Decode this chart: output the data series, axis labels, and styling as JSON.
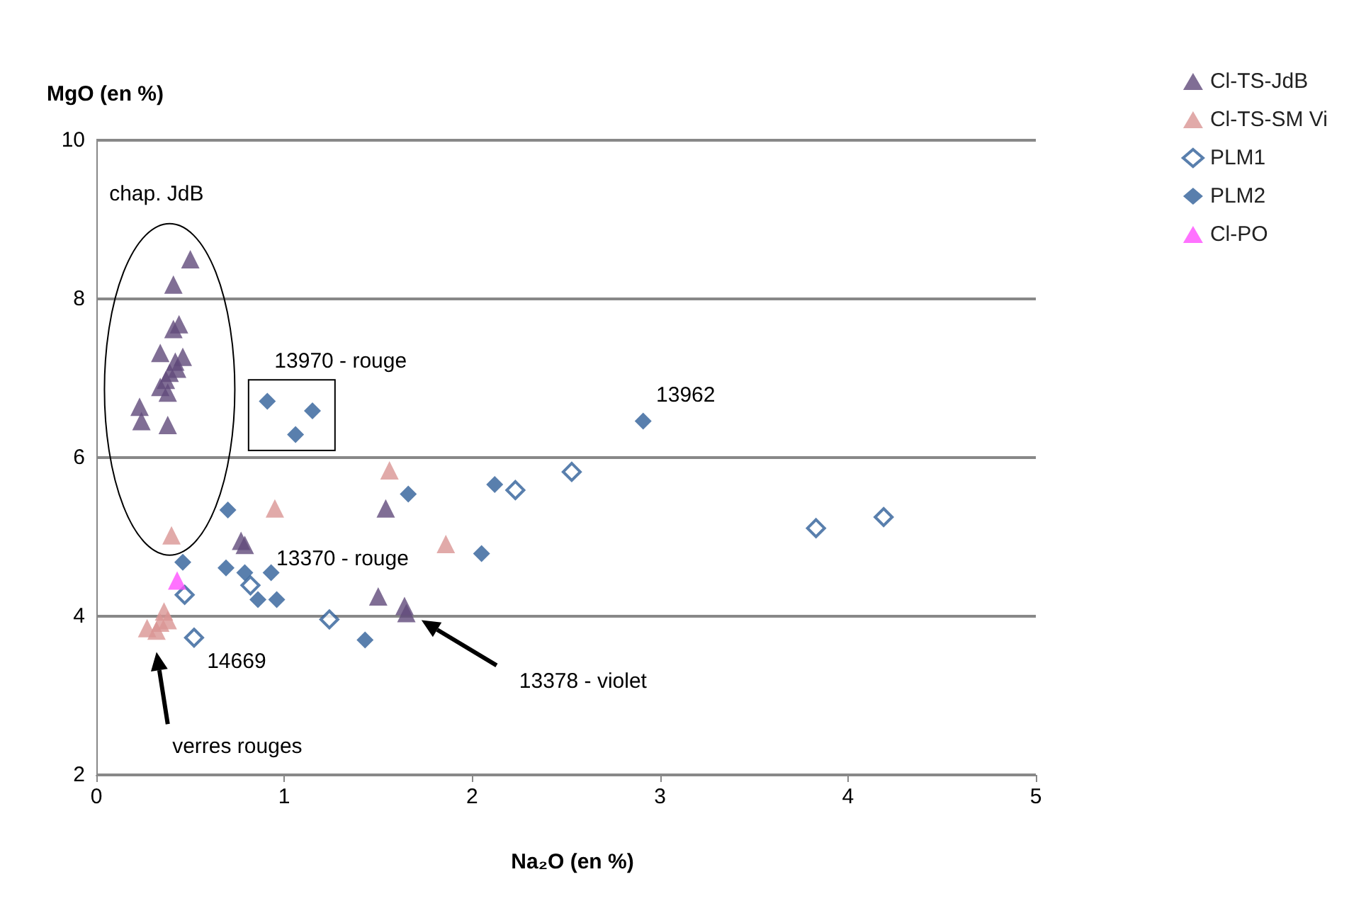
{
  "chart_data": {
    "type": "scatter",
    "xlabel": "Na₂O (en %)",
    "ylabel": "MgO (en %)",
    "xlim": [
      0,
      5
    ],
    "xticks": [
      0,
      1,
      2,
      3,
      4,
      5
    ],
    "ylim": [
      2,
      10
    ],
    "yticks": [
      2,
      4,
      6,
      8,
      10
    ],
    "grid": "y",
    "legend": "right",
    "series": [
      {
        "name": "Cl-TS-JdB",
        "color": "#604a7b",
        "marker": "triangle",
        "x": [
          0.5,
          0.41,
          0.44,
          0.41,
          0.34,
          0.46,
          0.42,
          0.43,
          0.39,
          0.37,
          0.34,
          0.38,
          0.23,
          0.24,
          0.38,
          1.54,
          0.77,
          0.79,
          1.5,
          1.64,
          1.65
        ],
        "values": [
          8.5,
          8.18,
          7.68,
          7.62,
          7.32,
          7.27,
          7.21,
          7.12,
          7.07,
          6.98,
          6.89,
          6.82,
          6.64,
          6.46,
          6.41,
          5.36,
          4.95,
          4.9,
          4.25,
          4.13,
          4.04
        ]
      },
      {
        "name": "Cl-TS-SM Vi",
        "color": "#d99594",
        "marker": "triangle",
        "x": [
          1.56,
          0.95,
          1.86,
          0.4,
          0.36,
          0.27,
          0.32,
          0.34,
          0.38
        ],
        "values": [
          5.84,
          5.36,
          4.91,
          5.02,
          4.06,
          3.85,
          3.82,
          3.92,
          3.95
        ]
      },
      {
        "name": "PLM1",
        "color": "#2f5f98",
        "marker": "diamond",
        "x": [
          0.82,
          0.47,
          0.52,
          1.24,
          2.23,
          2.53,
          3.83,
          4.19
        ],
        "values": [
          4.39,
          4.27,
          3.73,
          3.96,
          5.59,
          5.82,
          5.11,
          5.25
        ]
      },
      {
        "name": "PLM2",
        "color": "#2f5f98",
        "marker": "diamond",
        "x": [
          0.91,
          1.15,
          1.06,
          1.66,
          2.12,
          2.05,
          1.43,
          2.91,
          0.7,
          0.46,
          0.69,
          0.79,
          0.93,
          0.86,
          0.96
        ],
        "values": [
          6.71,
          6.59,
          6.29,
          5.54,
          5.66,
          4.79,
          3.7,
          6.46,
          5.34,
          4.68,
          4.61,
          4.55,
          4.55,
          4.21,
          4.21
        ]
      },
      {
        "name": "Cl-PO",
        "color": "#ff4fff",
        "marker": "triangle",
        "x": [
          0.43
        ],
        "values": [
          4.45
        ]
      }
    ],
    "annotations": [
      "chap. JdB",
      "13970 - rouge",
      {
        "text": "13962",
        "x": 2.91,
        "y": 6.46
      },
      {
        "text": "13370 - rouge",
        "x": 0.79,
        "y": 4.9
      },
      {
        "text": "14669",
        "x": 0.52,
        "y": 3.73
      },
      "13378 - violet",
      "verres rouges"
    ]
  }
}
